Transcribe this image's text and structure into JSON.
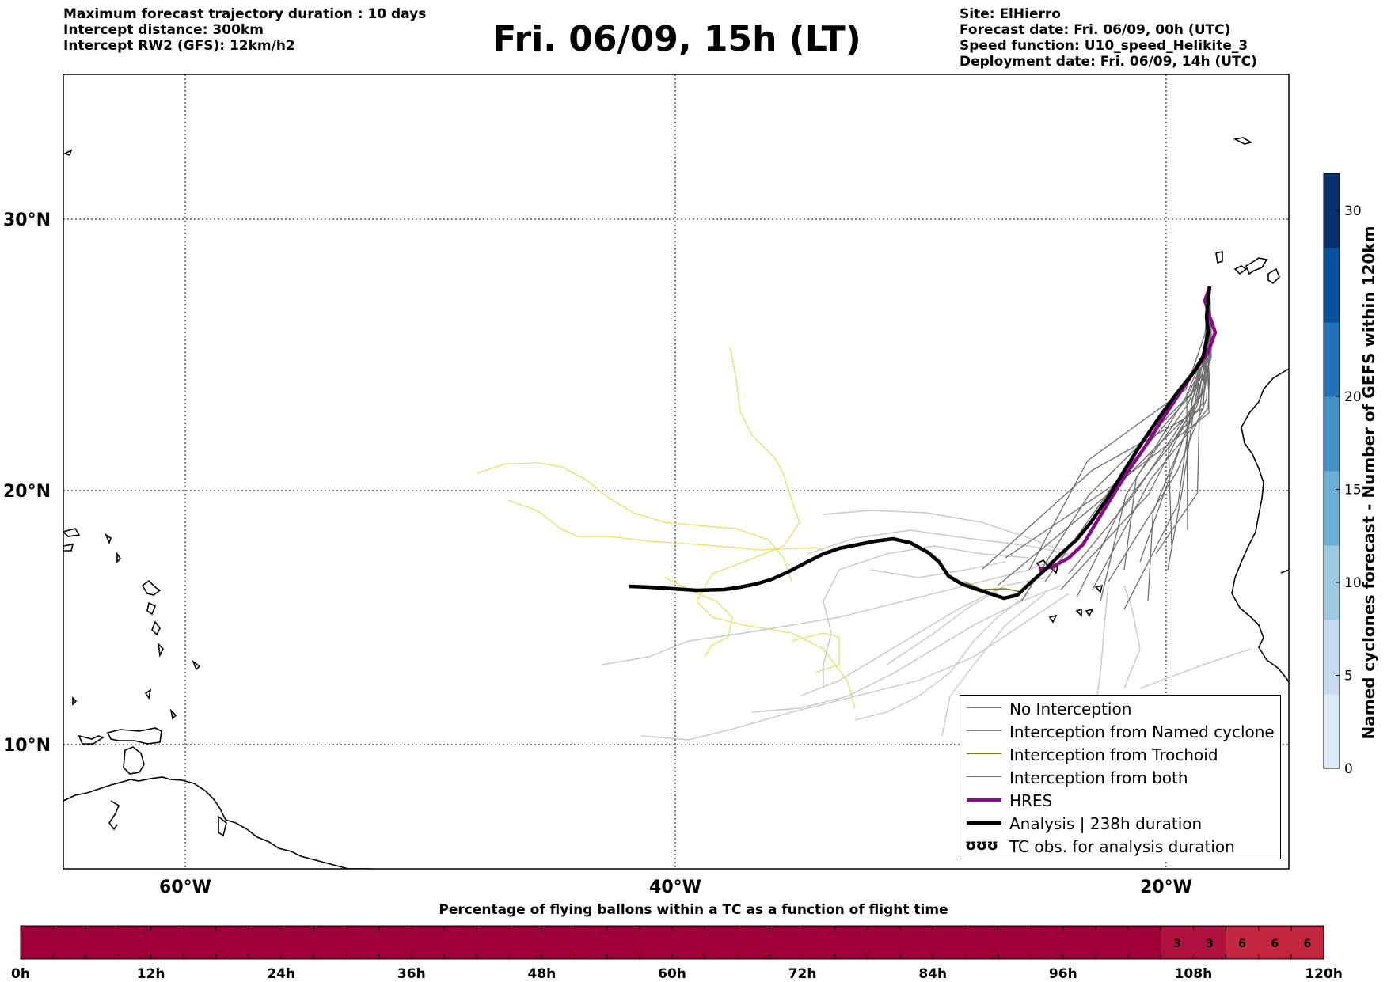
{
  "header": {
    "left_lines": [
      "Maximum forecast trajectory duration : 10 days",
      "Intercept distance: 300km",
      "Intercept RW2 (GFS):  12km/h2"
    ],
    "title": "Fri. 06/09, 15h (LT)",
    "right_lines": [
      "Site: ElHierro",
      "Forecast date: Fri. 06/09, 00h (UTC)",
      "Speed function: U10_speed_Helikite_3",
      "Deployment date: Fri. 06/09, 14h (UTC)"
    ]
  },
  "map": {
    "lat_labels": [
      "30°N",
      "20°N",
      "10°N"
    ],
    "lon_labels": [
      "60°W",
      "40°W",
      "20°W"
    ],
    "extent": {
      "lon_min": -65,
      "lon_max": -15,
      "lat_min": 5.4,
      "lat_max": 34.7
    }
  },
  "legend": {
    "items": [
      {
        "label": "No Interception",
        "color": "#777777",
        "style": "thin"
      },
      {
        "label": "Interception from Named cyclone",
        "color": "#e8602c",
        "style": "thin"
      },
      {
        "label": "Interception from Trochoid",
        "color": "#7a7a1a",
        "style": "thin"
      },
      {
        "label": "Interception from both",
        "color": "#3a9a3a",
        "style": "thin"
      },
      {
        "label": "HRES",
        "color": "#8b0a8b",
        "style": "thick"
      },
      {
        "label": "Analysis | 238h duration",
        "color": "#000000",
        "style": "thick"
      },
      {
        "label": "TC obs. for analysis duration",
        "color": "#000000",
        "style": "symbol",
        "symbol": "ʊʊʊ"
      }
    ]
  },
  "colorbar": {
    "title": "Named cyclones forecast - Number of GEFS within 120km",
    "ticks": [
      "0",
      "5",
      "10",
      "15",
      "20",
      "30"
    ],
    "tick_values": [
      0,
      5,
      10,
      15,
      20,
      30
    ],
    "range": [
      0,
      32
    ],
    "colors": [
      "#dce9f6",
      "#c6dbef",
      "#9ecae1",
      "#6baed6",
      "#4292c6",
      "#2171b5",
      "#08519c",
      "#08306b"
    ]
  },
  "time_bar": {
    "title": "Percentage of flying ballons within a TC as a function of flight time",
    "tick_labels": [
      "0h",
      "12h",
      "24h",
      "36h",
      "48h",
      "60h",
      "72h",
      "84h",
      "96h",
      "108h",
      "120h"
    ],
    "base_color": "#9e003a",
    "highlight_color": "#c2273f",
    "cells_total": 40,
    "cell_values": [
      "3",
      "3",
      "6",
      "6",
      "6"
    ],
    "cell_values_start_index": 35
  },
  "trajectories": {
    "hres_color": "#8b0a8b",
    "analysis_color": "#000000",
    "ensemble_dark_color": "#6e6e6e",
    "ensemble_light_color": "#c8c8c8",
    "tc_track_color": "#e8e060",
    "trochoid_color": "#7a7a1a"
  }
}
